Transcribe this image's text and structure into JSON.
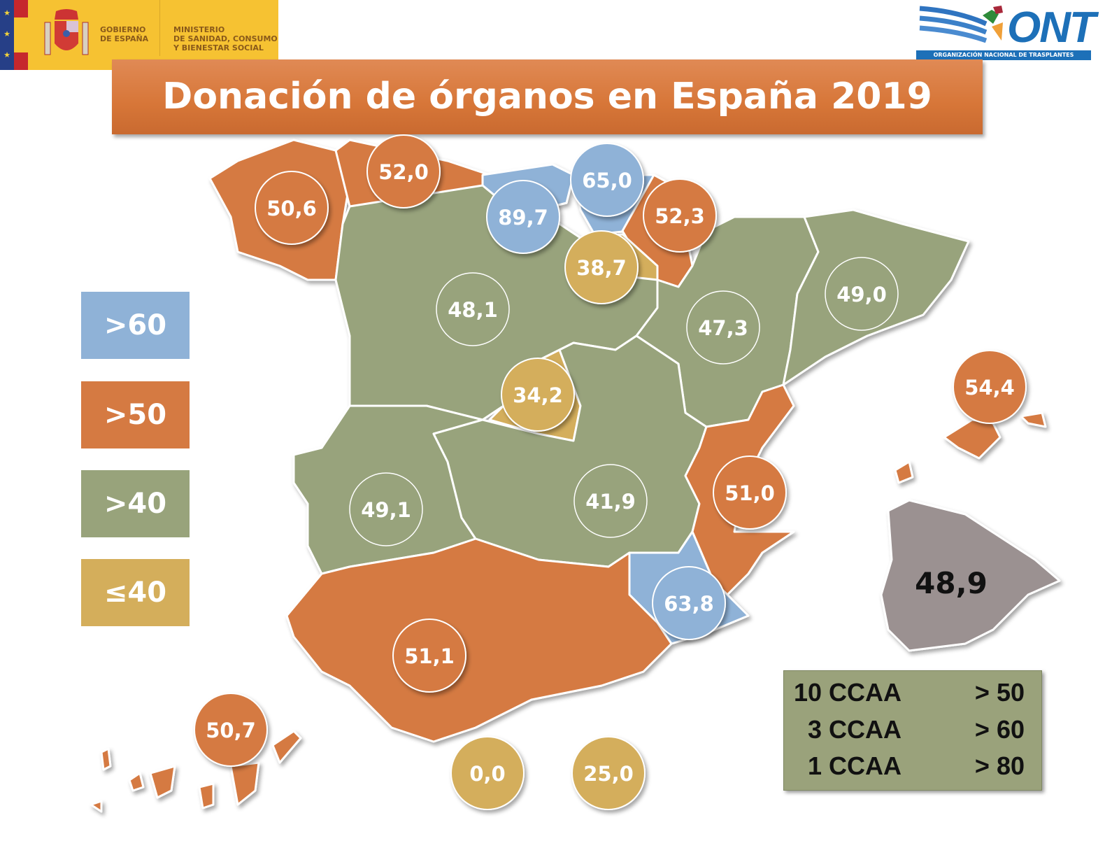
{
  "header": {
    "government": {
      "line1": "GOBIERNO",
      "line2": "DE ESPAÑA"
    },
    "ministry": {
      "line1": "MINISTERIO",
      "line2": "DE SANIDAD, CONSUMO",
      "line3": "Y BIENESTAR SOCIAL"
    },
    "ont": {
      "acronym": "ONT",
      "full_name": "ORGANIZACIÓN NACIONAL DE TRASPLANTES"
    }
  },
  "title": "Donación de órganos en España 2019",
  "colors": {
    "high60": "#8fb2d7",
    "high50": "#d57a42",
    "high40": "#98a37b",
    "low40": "#d4ae5b",
    "national": "#9b9191"
  },
  "legend": [
    {
      "label": ">60",
      "category": "high60"
    },
    {
      "label": ">50",
      "category": "high50"
    },
    {
      "label": ">40",
      "category": "high40"
    },
    {
      "label": "≤40",
      "category": "low40"
    }
  ],
  "regions": [
    {
      "id": "galicia",
      "value": "50,6",
      "category": "high50"
    },
    {
      "id": "asturias",
      "value": "52,0",
      "category": "high50"
    },
    {
      "id": "cantabria",
      "value": "89,7",
      "category": "high60"
    },
    {
      "id": "pais-vasco",
      "value": "65,0",
      "category": "high60"
    },
    {
      "id": "navarra",
      "value": "52,3",
      "category": "high50"
    },
    {
      "id": "la-rioja",
      "value": "38,7",
      "category": "low40"
    },
    {
      "id": "castilla-leon",
      "value": "48,1",
      "category": "high40"
    },
    {
      "id": "aragon",
      "value": "47,3",
      "category": "high40"
    },
    {
      "id": "cataluna",
      "value": "49,0",
      "category": "high40"
    },
    {
      "id": "madrid",
      "value": "34,2",
      "category": "low40"
    },
    {
      "id": "baleares",
      "value": "54,4",
      "category": "high50"
    },
    {
      "id": "extremadura",
      "value": "49,1",
      "category": "high40"
    },
    {
      "id": "castilla-la-mancha",
      "value": "41,9",
      "category": "high40"
    },
    {
      "id": "valencia",
      "value": "51,0",
      "category": "high50"
    },
    {
      "id": "murcia",
      "value": "63,8",
      "category": "high60"
    },
    {
      "id": "andalucia",
      "value": "51,1",
      "category": "high50"
    },
    {
      "id": "canarias",
      "value": "50,7",
      "category": "high50"
    },
    {
      "id": "ceuta",
      "value": "0,0",
      "category": "low40"
    },
    {
      "id": "melilla",
      "value": "25,0",
      "category": "low40"
    }
  ],
  "national": {
    "value": "48,9",
    "category": "national"
  },
  "summary": [
    {
      "count": "10 CCAA",
      "threshold": "> 50"
    },
    {
      "count": "3 CCAA",
      "threshold": "> 60"
    },
    {
      "count": "1 CCAA",
      "threshold": "> 80"
    }
  ]
}
